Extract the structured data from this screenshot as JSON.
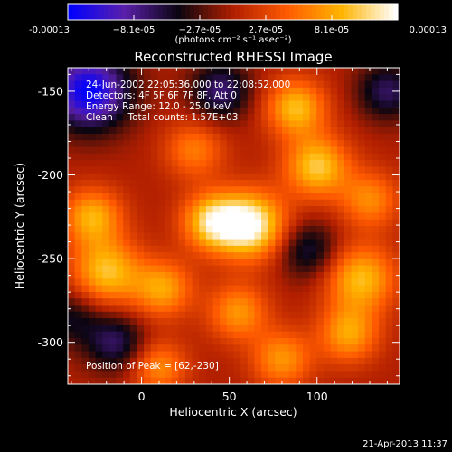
{
  "chart_data": {
    "type": "heatmap",
    "title": "Reconstructed RHESSI Image",
    "xlabel": "Heliocentric X (arcsec)",
    "ylabel": "Heliocentric Y (arcsec)",
    "x_ticks": [
      0,
      50,
      100
    ],
    "y_ticks": [
      -150,
      -200,
      -250,
      -300
    ],
    "xlim": [
      -42,
      147
    ],
    "ylim": [
      -325,
      -136
    ],
    "colorbar": {
      "tick_labels": [
        "-0.00013",
        "−8.1e-05",
        "−2.7e-05",
        "2.7e-05",
        "8.1e-05",
        "0.00013"
      ],
      "range": [
        -0.00013,
        0.00013
      ],
      "unit_label": "(photons cm⁻² s⁻¹ asec⁻²)",
      "colormap": [
        "#0000ff",
        "#5a1faa",
        "#0a0510",
        "#b01e00",
        "#ff5a00",
        "#ffb400",
        "#ffffff"
      ]
    },
    "annotations": [
      "24-Jun-2002 22:05:36.000 to 22:08:52.000",
      "Detectors: 4F 5F 6F 7F 8F, Att 0",
      "Energy Range: 12.0 - 25.0 keV",
      "Clean     Total counts: 1.57E+03"
    ],
    "peak_label": "Position of Peak = [62,-230]",
    "peak": [
      62,
      -230
    ],
    "sources": [
      {
        "x": 62,
        "y": -230,
        "amp": 1.0,
        "s": 14
      },
      {
        "x": 40,
        "y": -228,
        "amp": 0.75,
        "s": 12
      },
      {
        "x": 100,
        "y": -195,
        "amp": 0.75,
        "s": 13
      },
      {
        "x": 88,
        "y": -160,
        "amp": 0.7,
        "s": 12
      },
      {
        "x": -28,
        "y": -225,
        "amp": 0.65,
        "s": 12
      },
      {
        "x": -20,
        "y": -258,
        "amp": 0.72,
        "s": 14
      },
      {
        "x": 12,
        "y": -268,
        "amp": 0.6,
        "s": 12
      },
      {
        "x": 55,
        "y": -282,
        "amp": 0.55,
        "s": 12
      },
      {
        "x": 125,
        "y": -262,
        "amp": 0.7,
        "s": 14
      },
      {
        "x": 118,
        "y": -295,
        "amp": 0.6,
        "s": 12
      },
      {
        "x": 30,
        "y": -185,
        "amp": 0.45,
        "s": 12
      },
      {
        "x": 130,
        "y": -215,
        "amp": 0.5,
        "s": 12
      },
      {
        "x": 80,
        "y": -310,
        "amp": 0.55,
        "s": 12
      },
      {
        "x": 10,
        "y": -315,
        "amp": 0.5,
        "s": 11
      },
      {
        "x": -30,
        "y": -150,
        "amp": -1.0,
        "s": 16
      },
      {
        "x": 45,
        "y": -150,
        "amp": -0.55,
        "s": 12
      },
      {
        "x": -15,
        "y": -300,
        "amp": -0.5,
        "s": 12
      },
      {
        "x": 140,
        "y": -150,
        "amp": -0.5,
        "s": 12
      },
      {
        "x": 95,
        "y": -245,
        "amp": -0.45,
        "s": 12
      },
      {
        "x": -40,
        "y": -285,
        "amp": -0.35,
        "s": 12
      }
    ]
  },
  "footer": {
    "timestamp": "21-Apr-2013 11:37"
  }
}
